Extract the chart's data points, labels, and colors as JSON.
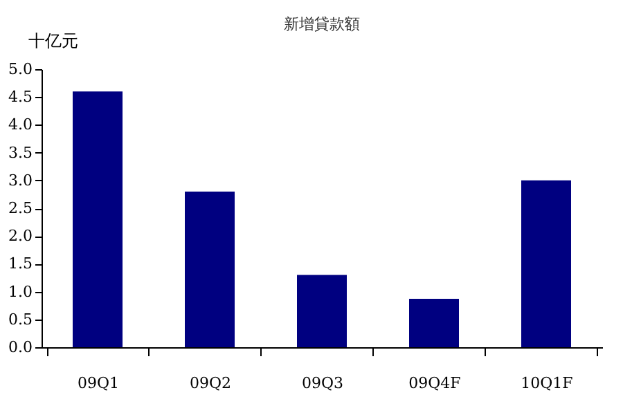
{
  "chart_data": {
    "type": "bar",
    "title": "新增貸款額",
    "ylabel": "十亿元",
    "categories": [
      "09Q1",
      "09Q2",
      "09Q3",
      "09Q4F",
      "10Q1F"
    ],
    "values": [
      4.6,
      2.8,
      1.3,
      0.87,
      3.0
    ],
    "color": "#000080",
    "ylim": [
      0,
      5
    ],
    "yticks": [
      {
        "value": 0,
        "label": "0.0"
      },
      0.5,
      {
        "value": 1,
        "label": "1.0"
      },
      1.5,
      {
        "value": 2,
        "label": "2.0"
      },
      2.5,
      {
        "value": 3,
        "label": "3.0"
      },
      3.5,
      {
        "value": 4,
        "label": "4.0"
      },
      4.5,
      {
        "value": 5,
        "label": "5.0"
      }
    ],
    "grid": false
  }
}
